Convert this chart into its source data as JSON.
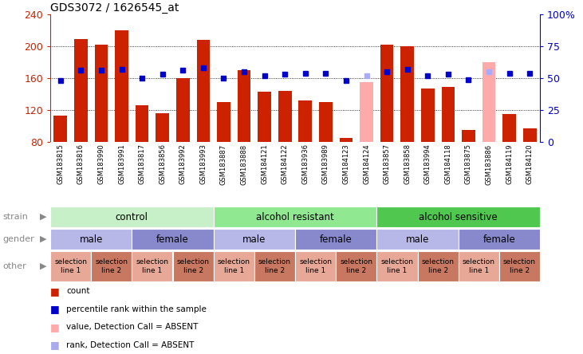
{
  "title": "GDS3072 / 1626545_at",
  "samples": [
    "GSM183815",
    "GSM183816",
    "GSM183990",
    "GSM183991",
    "GSM183817",
    "GSM183856",
    "GSM183992",
    "GSM183993",
    "GSM183887",
    "GSM183888",
    "GSM184121",
    "GSM184122",
    "GSM183936",
    "GSM183989",
    "GSM184123",
    "GSM184124",
    "GSM183857",
    "GSM183858",
    "GSM183994",
    "GSM184118",
    "GSM183875",
    "GSM183886",
    "GSM184119",
    "GSM184120"
  ],
  "bar_values": [
    113,
    209,
    202,
    220,
    126,
    116,
    160,
    208,
    130,
    170,
    143,
    144,
    132,
    130,
    85,
    155,
    202,
    200,
    147,
    149,
    95,
    180,
    115,
    97
  ],
  "bar_absent": [
    false,
    false,
    false,
    false,
    false,
    false,
    false,
    false,
    false,
    false,
    false,
    false,
    false,
    false,
    false,
    true,
    false,
    false,
    false,
    false,
    false,
    true,
    false,
    false
  ],
  "percentile": [
    48,
    56,
    56,
    57,
    50,
    53,
    56,
    58,
    50,
    55,
    52,
    53,
    54,
    54,
    48,
    52,
    55,
    57,
    52,
    53,
    49,
    55,
    54,
    54
  ],
  "percentile_absent": [
    false,
    false,
    false,
    false,
    false,
    false,
    false,
    false,
    false,
    false,
    false,
    false,
    false,
    false,
    false,
    true,
    false,
    false,
    false,
    false,
    false,
    true,
    false,
    false
  ],
  "bar_color": "#cc2200",
  "bar_absent_color": "#ffaaaa",
  "percentile_color": "#0000cc",
  "percentile_absent_color": "#aaaaff",
  "ymin": 80,
  "ymax": 240,
  "y2min": 0,
  "y2max": 100,
  "yticks": [
    80,
    120,
    160,
    200,
    240
  ],
  "y2ticks": [
    0,
    25,
    50,
    75,
    100
  ],
  "strain_groups": [
    {
      "label": "control",
      "start": 0,
      "end": 7,
      "color": "#c8f0c8"
    },
    {
      "label": "alcohol resistant",
      "start": 8,
      "end": 15,
      "color": "#90e890"
    },
    {
      "label": "alcohol sensitive",
      "start": 16,
      "end": 23,
      "color": "#50c850"
    }
  ],
  "gender_groups": [
    {
      "label": "male",
      "start": 0,
      "end": 3,
      "color": "#b8b8e8"
    },
    {
      "label": "female",
      "start": 4,
      "end": 7,
      "color": "#8888cc"
    },
    {
      "label": "male",
      "start": 8,
      "end": 11,
      "color": "#b8b8e8"
    },
    {
      "label": "female",
      "start": 12,
      "end": 15,
      "color": "#8888cc"
    },
    {
      "label": "male",
      "start": 16,
      "end": 19,
      "color": "#b8b8e8"
    },
    {
      "label": "female",
      "start": 20,
      "end": 23,
      "color": "#8888cc"
    }
  ],
  "other_groups": [
    {
      "label": "selection\nline 1",
      "start": 0,
      "end": 1,
      "color": "#e8a898"
    },
    {
      "label": "selection\nline 2",
      "start": 2,
      "end": 3,
      "color": "#c87860"
    },
    {
      "label": "selection\nline 1",
      "start": 4,
      "end": 5,
      "color": "#e8a898"
    },
    {
      "label": "selection\nline 2",
      "start": 6,
      "end": 7,
      "color": "#c87860"
    },
    {
      "label": "selection\nline 1",
      "start": 8,
      "end": 9,
      "color": "#e8a898"
    },
    {
      "label": "selection\nline 2",
      "start": 10,
      "end": 11,
      "color": "#c87860"
    },
    {
      "label": "selection\nline 1",
      "start": 12,
      "end": 13,
      "color": "#e8a898"
    },
    {
      "label": "selection\nline 2",
      "start": 14,
      "end": 15,
      "color": "#c87860"
    },
    {
      "label": "selection\nline 1",
      "start": 16,
      "end": 17,
      "color": "#e8a898"
    },
    {
      "label": "selection\nline 2",
      "start": 18,
      "end": 19,
      "color": "#c87860"
    },
    {
      "label": "selection\nline 1",
      "start": 20,
      "end": 21,
      "color": "#e8a898"
    },
    {
      "label": "selection\nline 2",
      "start": 22,
      "end": 23,
      "color": "#c87860"
    }
  ],
  "bg_color": "#ffffff",
  "bar_color_dark": "#cc2200",
  "tick_left_color": "#cc2200",
  "tick_right_color": "#0000cc",
  "legend_items": [
    {
      "label": "count",
      "color": "#cc2200"
    },
    {
      "label": "percentile rank within the sample",
      "color": "#0000cc"
    },
    {
      "label": "value, Detection Call = ABSENT",
      "color": "#ffaaaa"
    },
    {
      "label": "rank, Detection Call = ABSENT",
      "color": "#aaaaee"
    }
  ],
  "label_band_color": "#d0d0d0",
  "row_label_color": "#888888",
  "arrow_color": "#888888"
}
